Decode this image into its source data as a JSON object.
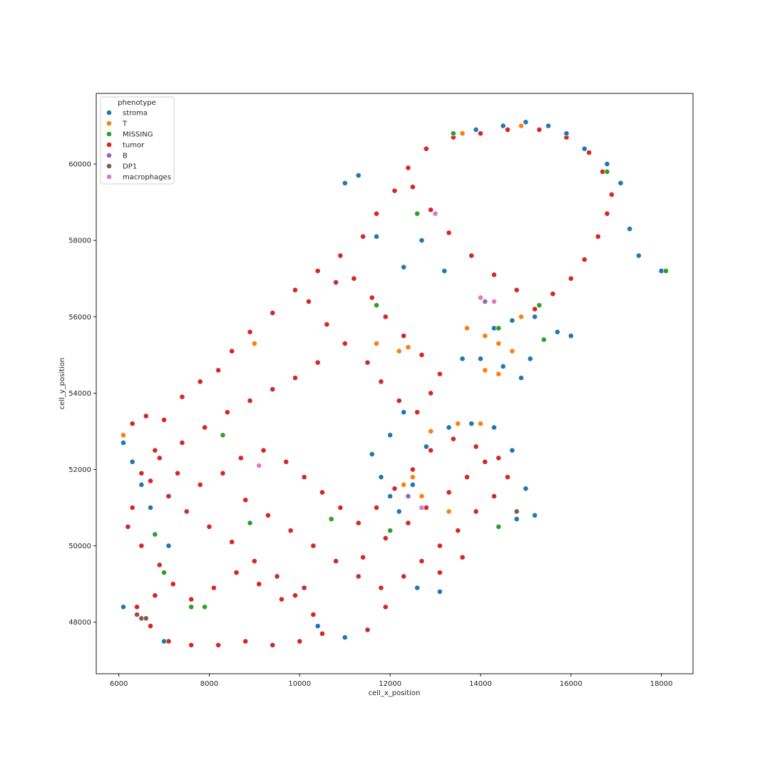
{
  "chart_data": {
    "type": "scatter",
    "title": "",
    "xlabel": "cell_x_position",
    "ylabel": "cell_y_position",
    "xlim": [
      5500,
      18700
    ],
    "ylim": [
      46650,
      61850
    ],
    "xticks": [
      6000,
      8000,
      10000,
      12000,
      14000,
      16000,
      18000
    ],
    "yticks": [
      48000,
      50000,
      52000,
      54000,
      56000,
      58000,
      60000
    ],
    "grid": false,
    "legend": {
      "title": "phenotype",
      "position": "top-left",
      "entries": [
        {
          "name": "stroma",
          "color": "#1f77b4"
        },
        {
          "name": "T",
          "color": "#ff7f0e"
        },
        {
          "name": "MISSING",
          "color": "#2ca02c"
        },
        {
          "name": "tumor",
          "color": "#d62728"
        },
        {
          "name": "B",
          "color": "#9467bd"
        },
        {
          "name": "DP1",
          "color": "#8c564b"
        },
        {
          "name": "macrophages",
          "color": "#e377c2"
        }
      ]
    },
    "series": [
      {
        "name": "tumor",
        "color": "#d62728",
        "points": [
          [
            6300,
            53200
          ],
          [
            6600,
            53400
          ],
          [
            7000,
            53300
          ],
          [
            7400,
            53900
          ],
          [
            7800,
            54300
          ],
          [
            8200,
            54600
          ],
          [
            8500,
            55100
          ],
          [
            8900,
            55600
          ],
          [
            9400,
            56100
          ],
          [
            9900,
            56700
          ],
          [
            10400,
            57200
          ],
          [
            10900,
            57600
          ],
          [
            11400,
            58100
          ],
          [
            11700,
            58700
          ],
          [
            12100,
            59300
          ],
          [
            12400,
            59900
          ],
          [
            12800,
            60400
          ],
          [
            13400,
            60700
          ],
          [
            14000,
            60800
          ],
          [
            14600,
            60900
          ],
          [
            15300,
            60900
          ],
          [
            15900,
            60700
          ],
          [
            16400,
            60300
          ],
          [
            16700,
            59800
          ],
          [
            16900,
            59200
          ],
          [
            16800,
            58700
          ],
          [
            16600,
            58100
          ],
          [
            16300,
            57500
          ],
          [
            16000,
            57000
          ],
          [
            15600,
            56600
          ],
          [
            15200,
            56200
          ],
          [
            14800,
            56700
          ],
          [
            14300,
            57100
          ],
          [
            13800,
            57600
          ],
          [
            13300,
            58200
          ],
          [
            12900,
            58800
          ],
          [
            12500,
            59400
          ],
          [
            10200,
            56400
          ],
          [
            10600,
            55800
          ],
          [
            11000,
            55300
          ],
          [
            11500,
            54800
          ],
          [
            11800,
            54300
          ],
          [
            12200,
            53800
          ],
          [
            12600,
            53500
          ],
          [
            12900,
            54000
          ],
          [
            13100,
            54500
          ],
          [
            12700,
            55000
          ],
          [
            12300,
            55500
          ],
          [
            11900,
            56000
          ],
          [
            11600,
            56500
          ],
          [
            11200,
            57000
          ],
          [
            10800,
            56900
          ],
          [
            10400,
            54800
          ],
          [
            9900,
            54400
          ],
          [
            9400,
            54100
          ],
          [
            8900,
            53800
          ],
          [
            8400,
            53500
          ],
          [
            7900,
            53100
          ],
          [
            7400,
            52700
          ],
          [
            6900,
            52300
          ],
          [
            6500,
            51900
          ],
          [
            6300,
            51000
          ],
          [
            6200,
            50500
          ],
          [
            6500,
            50000
          ],
          [
            6900,
            49500
          ],
          [
            7200,
            49000
          ],
          [
            6800,
            48700
          ],
          [
            6400,
            48400
          ],
          [
            6700,
            47900
          ],
          [
            7100,
            47500
          ],
          [
            7600,
            47400
          ],
          [
            8200,
            47400
          ],
          [
            8800,
            47500
          ],
          [
            9400,
            47400
          ],
          [
            10000,
            47500
          ],
          [
            10500,
            47700
          ],
          [
            10300,
            48200
          ],
          [
            9900,
            48700
          ],
          [
            9500,
            49200
          ],
          [
            9000,
            49600
          ],
          [
            8500,
            50100
          ],
          [
            8000,
            50500
          ],
          [
            7500,
            50900
          ],
          [
            7100,
            51300
          ],
          [
            6700,
            51700
          ],
          [
            8800,
            51200
          ],
          [
            9300,
            50800
          ],
          [
            9800,
            50400
          ],
          [
            10300,
            50000
          ],
          [
            10800,
            49600
          ],
          [
            11300,
            49200
          ],
          [
            11800,
            48900
          ],
          [
            12300,
            49200
          ],
          [
            12700,
            49600
          ],
          [
            13100,
            50000
          ],
          [
            13500,
            50400
          ],
          [
            13900,
            50900
          ],
          [
            14300,
            51300
          ],
          [
            14600,
            51800
          ],
          [
            14400,
            52300
          ],
          [
            13900,
            52600
          ],
          [
            13400,
            52800
          ],
          [
            12900,
            52500
          ],
          [
            12500,
            52000
          ],
          [
            12100,
            51500
          ],
          [
            11700,
            51000
          ],
          [
            11300,
            50600
          ],
          [
            10900,
            51000
          ],
          [
            10500,
            51400
          ],
          [
            10100,
            51800
          ],
          [
            9700,
            52200
          ],
          [
            9200,
            52500
          ],
          [
            8700,
            52300
          ],
          [
            8300,
            51900
          ],
          [
            7800,
            51600
          ],
          [
            7300,
            51900
          ],
          [
            6800,
            52500
          ],
          [
            11400,
            49700
          ],
          [
            11900,
            50200
          ],
          [
            12400,
            50600
          ],
          [
            12800,
            51000
          ],
          [
            13300,
            51400
          ],
          [
            13700,
            51800
          ],
          [
            14100,
            52200
          ],
          [
            13600,
            49700
          ],
          [
            13100,
            49300
          ],
          [
            12600,
            48900
          ],
          [
            11900,
            48400
          ],
          [
            11500,
            47800
          ],
          [
            7600,
            48600
          ],
          [
            8100,
            48900
          ],
          [
            8600,
            49300
          ],
          [
            9100,
            49000
          ],
          [
            9600,
            48600
          ],
          [
            10100,
            48900
          ]
        ]
      },
      {
        "name": "stroma",
        "color": "#1f77b4",
        "points": [
          [
            6100,
            52700
          ],
          [
            6300,
            52200
          ],
          [
            6500,
            51600
          ],
          [
            6700,
            51000
          ],
          [
            7100,
            50000
          ],
          [
            11000,
            59500
          ],
          [
            11300,
            59700
          ],
          [
            11700,
            58100
          ],
          [
            12300,
            57300
          ],
          [
            12700,
            58000
          ],
          [
            13200,
            57200
          ],
          [
            13600,
            54900
          ],
          [
            14000,
            54900
          ],
          [
            14500,
            54700
          ],
          [
            14900,
            54400
          ],
          [
            15100,
            54900
          ],
          [
            15400,
            55400
          ],
          [
            15700,
            55600
          ],
          [
            16000,
            55500
          ],
          [
            14300,
            55700
          ],
          [
            14700,
            55900
          ],
          [
            15200,
            56000
          ],
          [
            13400,
            60800
          ],
          [
            13900,
            60900
          ],
          [
            14500,
            61000
          ],
          [
            15000,
            61100
          ],
          [
            15500,
            61000
          ],
          [
            15900,
            60800
          ],
          [
            16300,
            60400
          ],
          [
            16800,
            60000
          ],
          [
            17100,
            59500
          ],
          [
            17300,
            58300
          ],
          [
            17500,
            57600
          ],
          [
            18000,
            57200
          ],
          [
            11600,
            52400
          ],
          [
            11800,
            51800
          ],
          [
            12000,
            51300
          ],
          [
            12200,
            50900
          ],
          [
            12500,
            51600
          ],
          [
            12800,
            52600
          ],
          [
            13300,
            53100
          ],
          [
            13800,
            53200
          ],
          [
            14300,
            53100
          ],
          [
            14700,
            52500
          ],
          [
            15000,
            51500
          ],
          [
            15200,
            50800
          ],
          [
            14800,
            50700
          ],
          [
            12000,
            52900
          ],
          [
            12300,
            53500
          ],
          [
            13100,
            48800
          ],
          [
            12600,
            48900
          ],
          [
            10400,
            47900
          ],
          [
            11000,
            47600
          ],
          [
            6100,
            48400
          ],
          [
            7000,
            47500
          ]
        ]
      },
      {
        "name": "T",
        "color": "#ff7f0e",
        "points": [
          [
            6100,
            52900
          ],
          [
            12200,
            55100
          ],
          [
            12400,
            55200
          ],
          [
            13700,
            55700
          ],
          [
            14100,
            55500
          ],
          [
            14400,
            55300
          ],
          [
            14700,
            55100
          ],
          [
            14900,
            56000
          ],
          [
            14100,
            54600
          ],
          [
            14400,
            54500
          ],
          [
            13600,
            60800
          ],
          [
            14900,
            61000
          ],
          [
            12900,
            53000
          ],
          [
            13500,
            53200
          ],
          [
            14000,
            53200
          ],
          [
            12500,
            51800
          ],
          [
            12700,
            51300
          ],
          [
            13300,
            50900
          ],
          [
            12300,
            51600
          ],
          [
            9000,
            55300
          ],
          [
            11700,
            55300
          ]
        ]
      },
      {
        "name": "MISSING",
        "color": "#2ca02c",
        "points": [
          [
            8300,
            52900
          ],
          [
            7600,
            48400
          ],
          [
            7900,
            48400
          ],
          [
            7000,
            49300
          ],
          [
            6800,
            50300
          ],
          [
            8900,
            50600
          ],
          [
            10700,
            50700
          ],
          [
            11700,
            56300
          ],
          [
            12600,
            58700
          ],
          [
            13400,
            60800
          ],
          [
            16800,
            59800
          ],
          [
            18100,
            57200
          ],
          [
            15300,
            56300
          ],
          [
            15400,
            55400
          ],
          [
            14400,
            55700
          ],
          [
            14400,
            50500
          ],
          [
            12000,
            50400
          ]
        ]
      },
      {
        "name": "B",
        "color": "#9467bd",
        "points": [
          [
            13000,
            58700
          ],
          [
            14100,
            56400
          ],
          [
            12400,
            51300
          ]
        ]
      },
      {
        "name": "DP1",
        "color": "#8c564b",
        "points": [
          [
            6400,
            48200
          ],
          [
            6500,
            48100
          ],
          [
            6600,
            48100
          ],
          [
            14800,
            50900
          ]
        ]
      },
      {
        "name": "macrophages",
        "color": "#e377c2",
        "points": [
          [
            9100,
            52100
          ],
          [
            14000,
            56500
          ],
          [
            14300,
            56400
          ],
          [
            13000,
            58700
          ],
          [
            12700,
            51000
          ]
        ]
      }
    ]
  }
}
